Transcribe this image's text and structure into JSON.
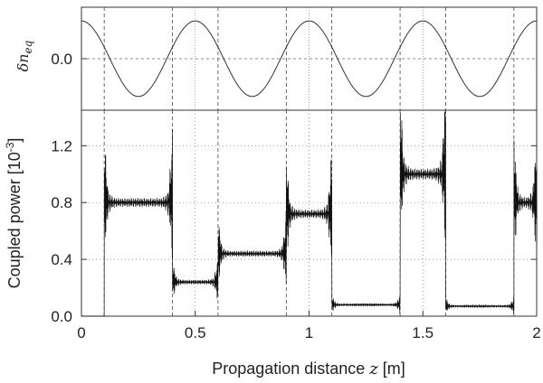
{
  "chart_data": [
    {
      "type": "line",
      "ylabel_main": "δn",
      "ylabel_sub": "eq",
      "xlim": [
        0,
        2
      ],
      "y_ticks": [
        "0.0"
      ],
      "y_tick_values": [
        0.0
      ],
      "grid": true,
      "series": [
        {
          "function": "cosine",
          "amplitude": 0.22,
          "period": 0.5,
          "x": [
            0,
            0.125,
            0.25,
            0.375,
            0.5,
            0.625,
            0.75,
            0.875,
            1.0,
            1.125,
            1.25,
            1.375,
            1.5,
            1.625,
            1.75,
            1.875,
            2.0
          ],
          "values": [
            0.22,
            0,
            -0.22,
            0,
            0.22,
            0,
            -0.22,
            0,
            0.22,
            0,
            -0.22,
            0,
            0.22,
            0,
            -0.22,
            0,
            0.22
          ]
        }
      ]
    },
    {
      "type": "line",
      "xlabel_main": "Propagation distance ",
      "xlabel_var": "z",
      "xlabel_unit": " [m]",
      "ylabel_main": "Coupled power [10",
      "ylabel_exp": "-3",
      "ylabel_end": "]",
      "xlim": [
        0,
        2
      ],
      "ylim": [
        0,
        1.45
      ],
      "x_ticks": [
        "0",
        "0.5",
        "1",
        "1.5",
        "2"
      ],
      "x_tick_values": [
        0,
        0.5,
        1,
        1.5,
        2
      ],
      "y_ticks": [
        "0.0",
        "0.4",
        "0.8",
        "1.2"
      ],
      "y_tick_values": [
        0.0,
        0.4,
        0.8,
        1.2
      ],
      "grid": true,
      "vertical_dashed_lines": [
        0.1,
        0.4,
        0.6,
        0.9,
        1.1,
        1.4,
        1.6,
        1.9
      ],
      "segments": [
        {
          "x0": 0.0,
          "x1": 0.1,
          "level": 0.0
        },
        {
          "x0": 0.1,
          "x1": 0.4,
          "level": 0.8
        },
        {
          "x0": 0.4,
          "x1": 0.6,
          "level": 0.24
        },
        {
          "x0": 0.6,
          "x1": 0.9,
          "level": 0.44
        },
        {
          "x0": 0.9,
          "x1": 1.1,
          "level": 0.72
        },
        {
          "x0": 1.1,
          "x1": 1.4,
          "level": 0.08
        },
        {
          "x0": 1.4,
          "x1": 1.6,
          "level": 1.0
        },
        {
          "x0": 1.6,
          "x1": 1.9,
          "level": 0.07
        },
        {
          "x0": 1.9,
          "x1": 2.0,
          "level": 0.8
        }
      ]
    }
  ]
}
